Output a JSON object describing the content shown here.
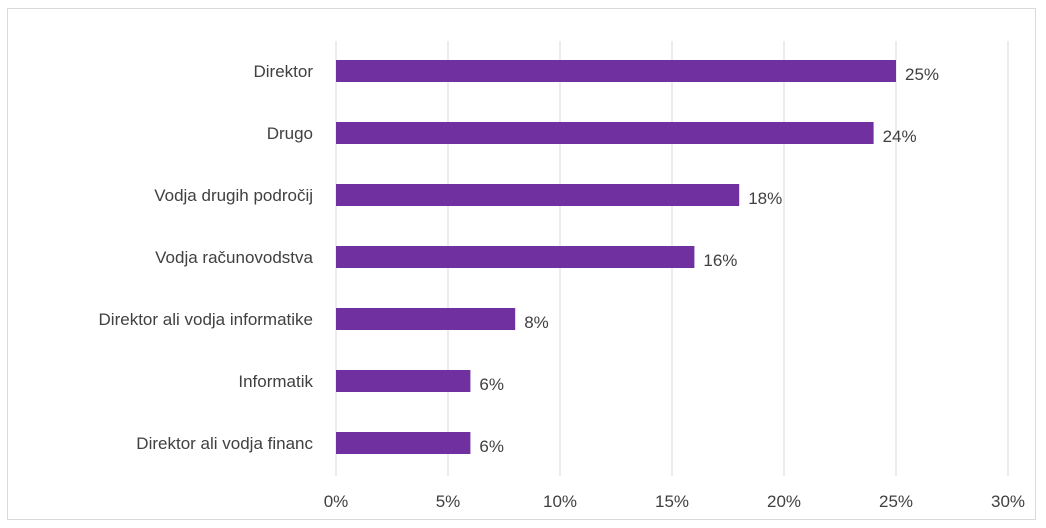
{
  "chart_data": {
    "type": "bar",
    "orientation": "horizontal",
    "categories": [
      "Direktor",
      "Drugo",
      "Vodja drugih področij",
      "Vodja računovodstva",
      "Direktor ali vodja informatike",
      "Informatik",
      "Direktor ali vodja financ"
    ],
    "values": [
      25,
      24,
      18,
      16,
      8,
      6,
      6
    ],
    "data_labels": [
      "25%",
      "24%",
      "18%",
      "16%",
      "8%",
      "6%",
      "6%"
    ],
    "x_ticks": [
      0,
      5,
      10,
      15,
      20,
      25,
      30
    ],
    "x_tick_labels": [
      "0%",
      "5%",
      "10%",
      "15%",
      "20%",
      "25%",
      "30%"
    ],
    "xlim": [
      0,
      30
    ],
    "unit": "%",
    "gridlines": "vertical",
    "legend": "none",
    "bar_color": "#7030a0"
  }
}
